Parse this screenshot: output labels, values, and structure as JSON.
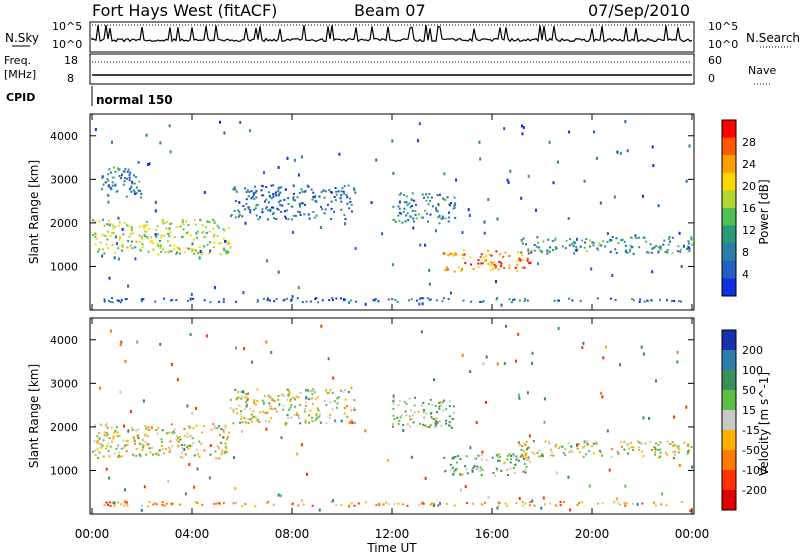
{
  "header": {
    "title": "Fort Hays West (fitACF)",
    "beam": "Beam 07",
    "date": "07/Sep/2010"
  },
  "summary_panels": {
    "top_left_label": "N.Sky",
    "top_right_label": "N.Search",
    "top_left_ticks": [
      "10^5",
      "10^0"
    ],
    "top_right_ticks": [
      "10^5",
      "10^0"
    ],
    "freq_label_line1": "Freq.",
    "freq_label_line2": "[MHz]",
    "freq_ticks": [
      "18",
      "8"
    ],
    "nave_label": "Nave",
    "nave_ticks": [
      "60",
      "0"
    ],
    "cpid_label": "CPID",
    "cpid_value": "normal 150"
  },
  "chart_data": [
    {
      "type": "heatmap",
      "title": "",
      "xlabel": "Time UT",
      "ylabel": "Slant Range [km]",
      "xlim": [
        0,
        24
      ],
      "ylim": [
        0,
        4500
      ],
      "x_ticks": [
        "00:00",
        "04:00",
        "08:00",
        "12:00",
        "16:00",
        "20:00",
        "00:00"
      ],
      "y_ticks": [
        "1000",
        "2000",
        "3000",
        "4000"
      ],
      "colorbar": {
        "label": "Power [dB]",
        "ticks": [
          "28",
          "24",
          "20",
          "16",
          "12",
          "8",
          "4"
        ],
        "colors": [
          "#ff0000",
          "#ff5a00",
          "#ffa000",
          "#ffd700",
          "#b0d830",
          "#50c050",
          "#2a9a7a",
          "#2b7ea8",
          "#2060c0",
          "#1030e0"
        ]
      },
      "echo_regions": [
        {
          "t_start": 0.0,
          "t_end": 5.5,
          "r_min": 1300,
          "r_max": 2100,
          "power_db": 16
        },
        {
          "t_start": 0.3,
          "t_end": 2.0,
          "r_min": 2600,
          "r_max": 3300,
          "power_db": 8
        },
        {
          "t_start": 5.5,
          "t_end": 10.5,
          "r_min": 2100,
          "r_max": 2900,
          "power_db": 6
        },
        {
          "t_start": 12.0,
          "t_end": 14.5,
          "r_min": 2000,
          "r_max": 2700,
          "power_db": 8
        },
        {
          "t_start": 14.0,
          "t_end": 17.5,
          "r_min": 900,
          "r_max": 1400,
          "power_db": 24
        },
        {
          "t_start": 17.0,
          "t_end": 24.0,
          "r_min": 1300,
          "r_max": 1700,
          "power_db": 10
        },
        {
          "t_start": 0.0,
          "t_end": 24.0,
          "r_min": 200,
          "r_max": 300,
          "power_db": 5
        }
      ]
    },
    {
      "type": "heatmap",
      "title": "",
      "xlabel": "Time UT",
      "ylabel": "Slant Range [km]",
      "xlim": [
        0,
        24
      ],
      "ylim": [
        0,
        4500
      ],
      "x_ticks": [
        "00:00",
        "04:00",
        "08:00",
        "12:00",
        "16:00",
        "20:00",
        "00:00"
      ],
      "y_ticks": [
        "1000",
        "2000",
        "3000",
        "4000"
      ],
      "colorbar": {
        "label": "Velocity [m s^-1]",
        "ticks": [
          "200",
          "100",
          "50",
          "15",
          "-15",
          "-50",
          "-100",
          "-200"
        ],
        "colors": [
          "#1a2fb0",
          "#2b7ea8",
          "#3d8f5a",
          "#5cc044",
          "#c8c8c8",
          "#ffb000",
          "#ff7a00",
          "#ff3000",
          "#e00000"
        ]
      },
      "echo_regions": [
        {
          "t_start": 0.0,
          "t_end": 5.5,
          "r_min": 1300,
          "r_max": 2100,
          "velocity": 0
        },
        {
          "t_start": 5.5,
          "t_end": 10.5,
          "r_min": 2100,
          "r_max": 2900,
          "velocity": 0
        },
        {
          "t_start": 12.0,
          "t_end": 14.5,
          "r_min": 2000,
          "r_max": 2700,
          "velocity": 40
        },
        {
          "t_start": 14.0,
          "t_end": 17.5,
          "r_min": 900,
          "r_max": 1400,
          "velocity": 40
        },
        {
          "t_start": 17.0,
          "t_end": 24.0,
          "r_min": 1300,
          "r_max": 1700,
          "velocity": 0
        },
        {
          "t_start": 0.0,
          "t_end": 24.0,
          "r_min": 200,
          "r_max": 300,
          "velocity": -60
        }
      ]
    }
  ]
}
